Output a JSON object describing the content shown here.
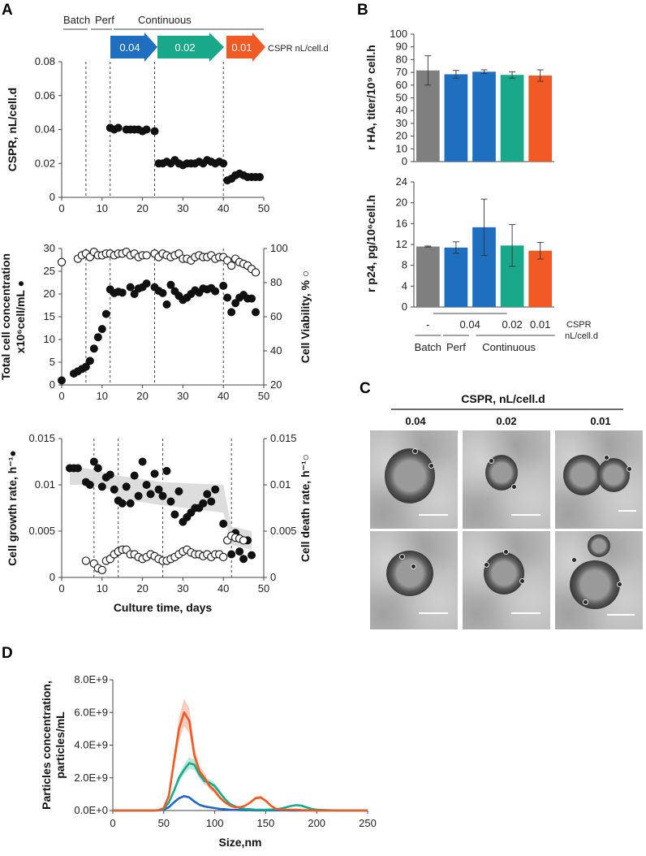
{
  "panels": {
    "A": "A",
    "B": "B",
    "C": "C",
    "D": "D"
  },
  "colors": {
    "batch": "#7f7f7f",
    "c004": "#1f6fc0",
    "c002": "#19a88a",
    "c001": "#f15a24",
    "shade": "#d9d9d9",
    "d_orange": "#f15a24",
    "d_teal": "#1aaa8a",
    "d_blue": "#2066c4"
  },
  "panelA": {
    "phase_labels": {
      "batch": "Batch",
      "perf": "Perf",
      "continuous": "Continuous"
    },
    "arrows": [
      "0.04",
      "0.02",
      "0.01"
    ],
    "arrow_legend": "CSPR nL/cell.d",
    "culture_time_label": "Culture time, days",
    "phase_lines_days": [
      6,
      12,
      23,
      40
    ],
    "phase_lines_days_bottom": [
      8,
      14,
      25,
      42
    ]
  },
  "chart_data": [
    {
      "id": "A1",
      "type": "scatter",
      "ylabel": "CSPR, nL/cell.d",
      "xlim": [
        0,
        50
      ],
      "ylim": [
        0,
        0.08
      ],
      "xticks": [
        "0",
        "10",
        "20",
        "30",
        "40",
        "50"
      ],
      "yticks": [
        "0",
        "0.02",
        "0.04",
        "0.06",
        "0.08"
      ],
      "series": [
        {
          "name": "CSPR",
          "marker": "filled",
          "x": [
            12,
            13,
            14,
            16,
            17,
            18,
            19,
            20,
            21,
            23,
            24,
            25,
            26,
            27,
            28,
            29,
            30,
            31,
            32,
            33,
            34,
            35,
            36,
            37,
            38,
            39,
            40,
            41,
            42,
            43,
            44,
            45,
            46,
            47,
            48,
            49
          ],
          "y": [
            0.041,
            0.04,
            0.041,
            0.04,
            0.04,
            0.04,
            0.04,
            0.039,
            0.04,
            0.039,
            0.02,
            0.02,
            0.021,
            0.02,
            0.022,
            0.02,
            0.019,
            0.02,
            0.02,
            0.02,
            0.021,
            0.02,
            0.022,
            0.021,
            0.02,
            0.021,
            0.02,
            0.01,
            0.011,
            0.013,
            0.014,
            0.013,
            0.012,
            0.012,
            0.012,
            0.012
          ]
        }
      ]
    },
    {
      "id": "A2",
      "type": "scatter",
      "ylabel": "Total cell concentration",
      "ylabel2": "x10⁶cell/mL ●",
      "y2label": "Cell Viability, % ○",
      "xlim": [
        0,
        50
      ],
      "ylim": [
        0,
        30
      ],
      "y2lim": [
        20,
        100
      ],
      "xticks": [
        "0",
        "10",
        "20",
        "30",
        "40",
        "50"
      ],
      "yticks": [
        "0",
        "5",
        "10",
        "15",
        "20",
        "25",
        "30"
      ],
      "y2ticks": [
        "20",
        "40",
        "60",
        "80",
        "100"
      ],
      "series": [
        {
          "name": "Total cell concentration",
          "marker": "filled",
          "axis": "left",
          "x": [
            0,
            3,
            4,
            5,
            6,
            7,
            8,
            9,
            10,
            11,
            12,
            13,
            14,
            15,
            17,
            18,
            19,
            20,
            21,
            23,
            24,
            25,
            26,
            27,
            28,
            29,
            30,
            31,
            32,
            33,
            34,
            35,
            36,
            37,
            38,
            40,
            41,
            42,
            43,
            44,
            45,
            46,
            47,
            48
          ],
          "y": [
            1.0,
            2.5,
            3.0,
            3.5,
            4.0,
            5.3,
            8.0,
            10.5,
            12.3,
            15.6,
            21.0,
            20.2,
            20.5,
            20.3,
            21.5,
            20.0,
            21.2,
            21.5,
            22.3,
            21.5,
            20.7,
            20.2,
            17.7,
            22.0,
            20.6,
            19.6,
            18.7,
            19.2,
            20.0,
            20.8,
            20.3,
            21.2,
            21.0,
            21.3,
            20.6,
            21.8,
            19.2,
            16.0,
            18.0,
            19.2,
            19.8,
            19.0,
            19.0,
            16.0
          ]
        },
        {
          "name": "Cell Viability",
          "marker": "open",
          "axis": "right",
          "x": [
            0,
            4,
            5,
            6,
            7,
            8,
            9,
            10,
            11,
            12,
            13,
            14,
            15,
            16,
            17,
            18,
            19,
            20,
            21,
            23,
            24,
            25,
            26,
            27,
            28,
            29,
            30,
            31,
            32,
            33,
            34,
            35,
            36,
            37,
            38,
            39,
            40,
            41,
            42,
            43,
            44,
            45,
            46,
            47,
            48
          ],
          "y": [
            92,
            94,
            96,
            97,
            95,
            98,
            96,
            96,
            97,
            97,
            96,
            97,
            97,
            98,
            96,
            97,
            95,
            96,
            96,
            97,
            95,
            97,
            96,
            95,
            96,
            97,
            94,
            94,
            93,
            95,
            96,
            95,
            95,
            96,
            94,
            95,
            95,
            93,
            90,
            94,
            92,
            91,
            90,
            88,
            86
          ]
        }
      ]
    },
    {
      "id": "A3",
      "type": "scatter",
      "ylabel": "Cell growth rate, h⁻¹●",
      "y2label": "Cell death rate, h⁻¹○",
      "xlabel": "Culture time, days",
      "xlim": [
        0,
        50
      ],
      "ylim": [
        0,
        0.015
      ],
      "y2lim": [
        0,
        0.015
      ],
      "xticks": [
        "0",
        "10",
        "20",
        "30",
        "40",
        "50"
      ],
      "yticks": [
        "0",
        "0.005",
        "0.01",
        "0.015"
      ],
      "y2ticks": [
        "0",
        "0.005",
        "0.01",
        "0.015"
      ],
      "series": [
        {
          "name": "Cell growth rate",
          "marker": "filled",
          "axis": "left",
          "x": [
            2,
            3,
            4,
            6,
            7,
            8,
            9,
            10,
            11,
            12,
            13,
            14,
            15,
            16,
            17,
            18,
            19,
            20,
            21,
            22,
            23,
            24,
            25,
            26,
            27,
            28,
            29,
            30,
            31,
            32,
            33,
            34,
            35,
            36,
            37,
            38,
            40,
            41,
            42,
            43,
            44,
            45,
            46,
            47
          ],
          "y": [
            0.0118,
            0.0118,
            0.0118,
            0.0103,
            0.01,
            0.0125,
            0.0118,
            0.0098,
            0.0108,
            0.0111,
            0.0095,
            0.0083,
            0.008,
            0.0098,
            0.008,
            0.011,
            0.0088,
            0.0125,
            0.01,
            0.009,
            0.0112,
            0.0095,
            0.0088,
            0.0115,
            0.0082,
            0.0068,
            0.0093,
            0.006,
            0.0065,
            0.007,
            0.0075,
            0.0075,
            0.008,
            0.009,
            0.0082,
            0.0095,
            0.0058,
            0.004,
            0.0025,
            0.0048,
            0.0028,
            0.002,
            0.004,
            0.0024
          ]
        },
        {
          "name": "Cell death rate",
          "marker": "open",
          "axis": "right",
          "x": [
            6,
            8,
            9,
            10,
            11,
            12,
            13,
            14,
            15,
            16,
            17,
            18,
            19,
            20,
            21,
            22,
            23,
            24,
            25,
            26,
            27,
            28,
            29,
            30,
            31,
            32,
            33,
            34,
            35,
            36,
            37,
            38,
            39,
            40,
            41,
            42,
            43,
            44,
            45
          ],
          "y": [
            0.0018,
            0.0015,
            0.001,
            0.0008,
            0.0018,
            0.002,
            0.0025,
            0.0028,
            0.003,
            0.003,
            0.0025,
            0.0025,
            0.0022,
            0.002,
            0.0022,
            0.0025,
            0.0023,
            0.002,
            0.0018,
            0.0018,
            0.002,
            0.0022,
            0.0025,
            0.0028,
            0.003,
            0.0027,
            0.0025,
            0.0025,
            0.0023,
            0.0025,
            0.0022,
            0.0025,
            0.0025,
            0.0022,
            0.004,
            0.0045,
            0.0043,
            0.0042,
            0.004
          ]
        }
      ],
      "shaded_band": {
        "x": [
          2,
          6,
          12,
          14,
          25,
          40,
          42,
          47
        ],
        "upper": [
          0.012,
          0.0118,
          0.0112,
          0.011,
          0.0103,
          0.01,
          0.0055,
          0.005
        ],
        "lower": [
          0.01,
          0.01,
          0.0095,
          0.0085,
          0.0078,
          0.007,
          0.0035,
          0.003
        ]
      }
    },
    {
      "id": "B1",
      "type": "bar",
      "ylabel": "r HA, titer/10⁹ cell.h",
      "ylim": [
        0,
        100
      ],
      "yticks": [
        "0",
        "10",
        "20",
        "30",
        "40",
        "50",
        "60",
        "70",
        "80",
        "90",
        "100"
      ],
      "categories": [
        "Batch",
        "Perf 0.04",
        "Continuous 0.04",
        "Continuous 0.02",
        "Continuous 0.01"
      ],
      "values": [
        71.5,
        68.5,
        70.5,
        68.0,
        67.5
      ],
      "errors": [
        11.5,
        3.0,
        1.5,
        2.5,
        4.5
      ]
    },
    {
      "id": "B2",
      "type": "bar",
      "ylabel": "r p24, pg/10⁶cell.h",
      "ylim": [
        0,
        24
      ],
      "yticks": [
        "0",
        "4",
        "8",
        "12",
        "16",
        "20",
        "24"
      ],
      "categories": [
        "Batch",
        "Perf 0.04",
        "Continuous 0.04",
        "Continuous 0.02",
        "Continuous 0.01"
      ],
      "values": [
        11.6,
        11.4,
        15.3,
        11.8,
        10.8
      ],
      "errors": [
        0.1,
        1.1,
        5.4,
        4.0,
        1.6
      ],
      "cspr_row": [
        "-",
        "0.04",
        "0.02",
        "0.01"
      ],
      "cspr_label": "CSPR",
      "cspr_unit": "nL/cell.d",
      "phase_row": [
        "Batch",
        "Perf",
        "Continuous"
      ]
    },
    {
      "id": "D",
      "type": "line",
      "xlabel": "Size,nm",
      "ylabel": "Particles concentration,",
      "ylabel2": "particles/mL",
      "xlim": [
        0,
        250
      ],
      "ylim": [
        0,
        8000000000.0
      ],
      "xticks": [
        "0",
        "50",
        "100",
        "150",
        "200",
        "250"
      ],
      "yticks": [
        "0.0E+0",
        "2.0E+9",
        "4.0E+9",
        "6.0E+9",
        "8.0E+9"
      ],
      "x": [
        0,
        10,
        20,
        30,
        40,
        45,
        50,
        55,
        60,
        65,
        70,
        75,
        80,
        85,
        90,
        95,
        100,
        105,
        110,
        115,
        120,
        125,
        130,
        135,
        140,
        145,
        150,
        155,
        160,
        165,
        170,
        175,
        180,
        185,
        190,
        195,
        200,
        210,
        220,
        230,
        240,
        250
      ],
      "series": [
        {
          "name": "0.01",
          "color": "#f15a24",
          "y": [
            0,
            0,
            0,
            0,
            0,
            0.02,
            0.15,
            0.9,
            3.0,
            5.0,
            6.0,
            5.5,
            3.4,
            2.4,
            2.0,
            1.5,
            1.2,
            0.8,
            0.5,
            0.3,
            0.2,
            0.2,
            0.3,
            0.5,
            0.75,
            0.8,
            0.6,
            0.3,
            0.1,
            0.05,
            0.05,
            0.05,
            0.05,
            0.03,
            0.02,
            0.01,
            0.0,
            0,
            0,
            0,
            0,
            0
          ]
        },
        {
          "name": "0.02",
          "color": "#1aaa8a",
          "y": [
            0,
            0,
            0,
            0,
            0,
            0.02,
            0.1,
            0.5,
            1.2,
            2.0,
            2.5,
            2.9,
            2.8,
            2.2,
            1.8,
            1.7,
            1.5,
            1.1,
            0.7,
            0.4,
            0.25,
            0.15,
            0.1,
            0.08,
            0.05,
            0.05,
            0.05,
            0.06,
            0.08,
            0.12,
            0.2,
            0.28,
            0.33,
            0.3,
            0.2,
            0.1,
            0.05,
            0.02,
            0,
            0,
            0,
            0
          ]
        },
        {
          "name": "0.04",
          "color": "#2066c4",
          "y": [
            0,
            0,
            0,
            0,
            0,
            0.01,
            0.05,
            0.2,
            0.5,
            0.75,
            0.88,
            0.8,
            0.55,
            0.35,
            0.25,
            0.2,
            0.15,
            0.1,
            0.08,
            0.05,
            0.04,
            0.03,
            0.02,
            0.02,
            0.01,
            0.01,
            0.01,
            0.01,
            0.01,
            0.01,
            0.01,
            0,
            0,
            0,
            0,
            0,
            0,
            0,
            0,
            0,
            0,
            0
          ]
        }
      ]
    }
  ],
  "panelC": {
    "title": "CSPR, nL/cell.d",
    "columns": [
      "0.04",
      "0.02",
      "0.01"
    ]
  }
}
